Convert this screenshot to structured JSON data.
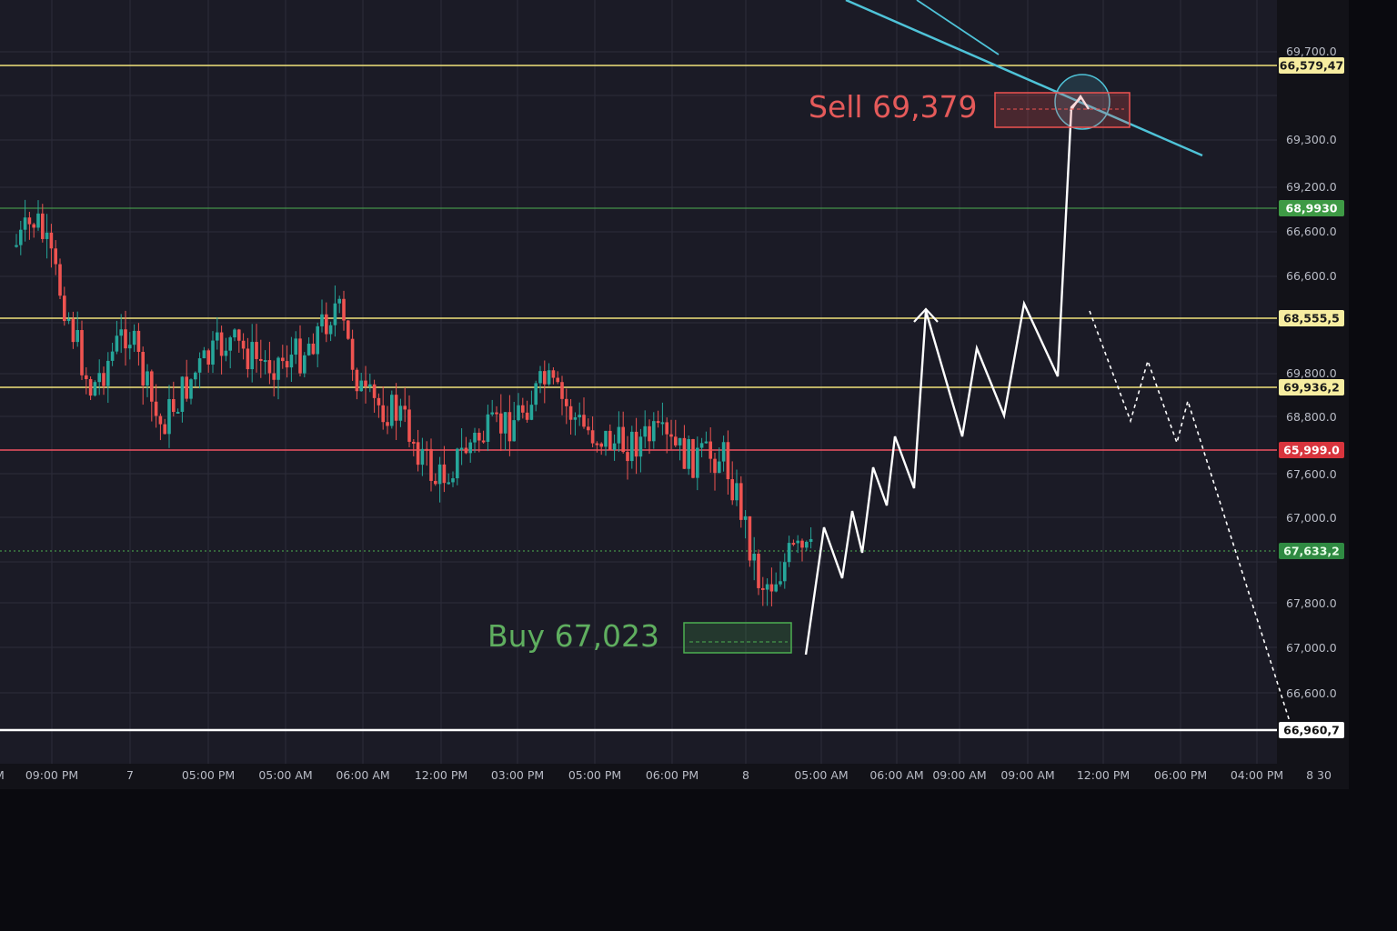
{
  "colors": {
    "background": "#1b1b26",
    "outer_background": "#0a0a0f",
    "axis_background": "#121218",
    "grid": "#2c2d3a",
    "bull_candle": "#26a69a",
    "bear_candle": "#ef5350",
    "resistance_yellow": "#f2e37a",
    "support_green": "#4caf50",
    "level_red": "#ef5360",
    "level_white": "#ffffff",
    "trendline_cyan": "#4fc3d8",
    "projection_white": "#ffffff",
    "buy_text": "#5fae5f",
    "sell_text": "#e55a5a"
  },
  "chart_data": {
    "type": "candlestick",
    "price_axis_labels": [
      "69,700.0",
      "69,300.0",
      "69,200.0",
      "66,600.0",
      "66,600.0",
      "69,800.0",
      "68,800.0",
      "67,600.0",
      "67,000.0",
      "67,800.0",
      "67,000.0",
      "66,600.0"
    ],
    "time_axis_labels": [
      "M",
      "09:00 PM",
      "7",
      "05:00 PM",
      "05:00 AM",
      "06:00 AM",
      "12:00 PM",
      "03:00 PM",
      "05:00 PM",
      "06:00 PM",
      "8",
      "05:00 AM",
      "06:00 AM",
      "09:00 AM",
      "09:00 AM",
      "12:00 PM",
      "06:00 PM",
      "04:00 PM",
      "8 30"
    ],
    "levels": [
      {
        "tag": "66,579,47",
        "style": "yellow"
      },
      {
        "tag": "68,9930",
        "style": "green"
      },
      {
        "tag": "68,555,5",
        "style": "yellow"
      },
      {
        "tag": "69,936,2",
        "style": "yellow"
      },
      {
        "tag": "65,999.0",
        "style": "red"
      },
      {
        "tag": "67,633,2",
        "style": "green-dotted"
      },
      {
        "tag": "66,960,7",
        "style": "white"
      }
    ],
    "annotations": {
      "buy_label": "Buy 67,023",
      "sell_label": "Sell 69,379"
    }
  }
}
